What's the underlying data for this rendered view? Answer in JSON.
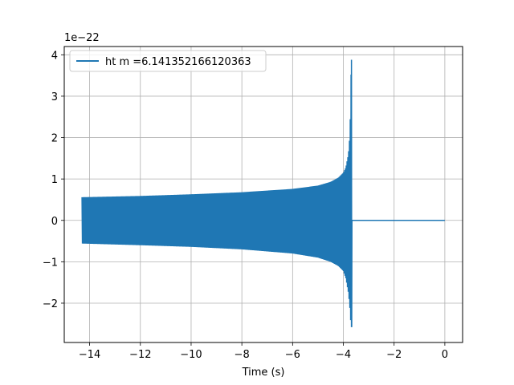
{
  "chart_data": {
    "type": "line",
    "title": "",
    "xlabel": "Time (s)",
    "ylabel": "",
    "y_offset_label": "1e−22",
    "y_scale_exponent": -22,
    "xlim": [
      -15.0,
      0.7
    ],
    "ylim": [
      -2.95,
      4.2
    ],
    "grid": true,
    "legend_position": "upper-left",
    "x_ticks": [
      -14,
      -12,
      -10,
      -8,
      -6,
      -4,
      -2,
      0
    ],
    "x_tick_labels": [
      "−14",
      "−12",
      "−10",
      "−8",
      "−6",
      "−4",
      "−2",
      "0"
    ],
    "y_ticks": [
      -2,
      -1,
      0,
      1,
      2,
      3,
      4
    ],
    "y_tick_labels": [
      "−2",
      "−1",
      "0",
      "1",
      "2",
      "3",
      "4"
    ],
    "series": [
      {
        "name": "ht m =6.141352166120363",
        "color": "#1f77b4",
        "signal_start_x": -14.3,
        "merger_x": -3.68,
        "end_x": 0.0,
        "upper_envelope": {
          "x": [
            -14.3,
            -12.0,
            -10.0,
            -8.0,
            -6.0,
            -5.0,
            -4.5,
            -4.2,
            -4.0,
            -3.9,
            -3.8,
            -3.75,
            -3.72,
            -3.7,
            -3.69
          ],
          "y": [
            0.56,
            0.59,
            0.63,
            0.68,
            0.76,
            0.84,
            0.93,
            1.03,
            1.15,
            1.28,
            1.6,
            2.0,
            2.6,
            3.3,
            3.88
          ]
        },
        "lower_envelope": {
          "x": [
            -14.3,
            -12.0,
            -10.0,
            -8.0,
            -6.0,
            -5.0,
            -4.5,
            -4.2,
            -4.0,
            -3.9,
            -3.8,
            -3.75,
            -3.72,
            -3.7,
            -3.69
          ],
          "y": [
            -0.56,
            -0.6,
            -0.64,
            -0.7,
            -0.8,
            -0.9,
            -1.0,
            -1.1,
            -1.22,
            -1.4,
            -1.75,
            -2.05,
            -2.35,
            -2.5,
            -2.58
          ]
        },
        "post_merger_value": 0.0
      }
    ]
  }
}
